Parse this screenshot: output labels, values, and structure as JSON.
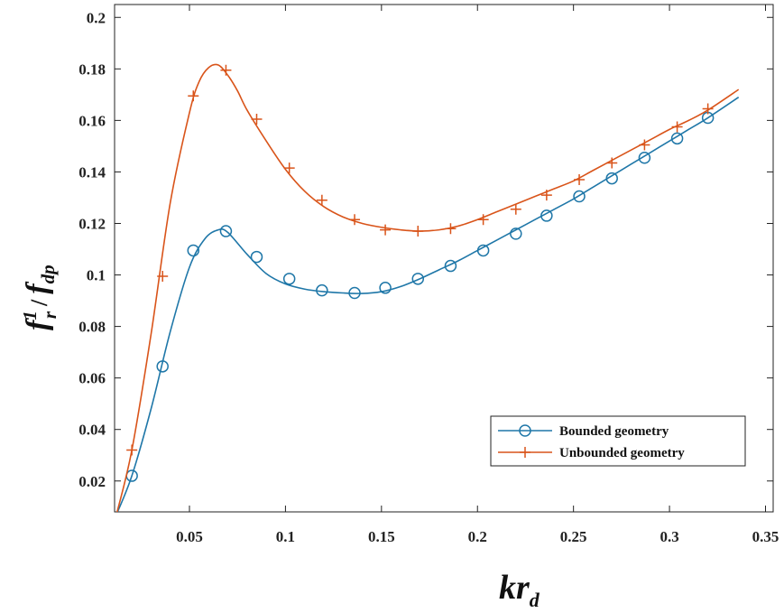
{
  "chart_data": {
    "type": "line",
    "title": "",
    "xlabel_main": "kr",
    "xlabel_sub": "d",
    "ylabel_f1": "f",
    "ylabel_f1_sub": "r",
    "ylabel_f1_sup": "1",
    "ylabel_slash": "/",
    "ylabel_f2": "f",
    "ylabel_f2_sub": "dp",
    "xlim": [
      0.011,
      0.354
    ],
    "ylim": [
      0.008,
      0.205
    ],
    "xticks": [
      0.05,
      0.1,
      0.15,
      0.2,
      0.25,
      0.3,
      0.35
    ],
    "xtick_labels": [
      "0.05",
      "0.1",
      "0.15",
      "0.2",
      "0.25",
      "0.3",
      "0.35"
    ],
    "yticks": [
      0.02,
      0.04,
      0.06,
      0.08,
      0.1,
      0.12,
      0.14,
      0.16,
      0.18,
      0.2
    ],
    "ytick_labels": [
      "0.02",
      "0.04",
      "0.06",
      "0.08",
      "0.1",
      "0.12",
      "0.14",
      "0.16",
      "0.18",
      "0.2"
    ],
    "grid": false,
    "legend_position": "lower-right",
    "series": [
      {
        "name": "Bounded geometry",
        "color": "#1f77a8",
        "marker": "circle",
        "curve_x": [
          0.012,
          0.02,
          0.03,
          0.04,
          0.05,
          0.058,
          0.065,
          0.07,
          0.08,
          0.09,
          0.1,
          0.11,
          0.12,
          0.13,
          0.14,
          0.15,
          0.16,
          0.17,
          0.18,
          0.19,
          0.2,
          0.21,
          0.22,
          0.23,
          0.24,
          0.25,
          0.26,
          0.27,
          0.28,
          0.29,
          0.3,
          0.31,
          0.32,
          0.336
        ],
        "curve_y": [
          0.007,
          0.022,
          0.048,
          0.078,
          0.103,
          0.114,
          0.1175,
          0.1165,
          0.108,
          0.1005,
          0.0965,
          0.0945,
          0.0935,
          0.093,
          0.0928,
          0.0935,
          0.0955,
          0.0985,
          0.102,
          0.1055,
          0.1095,
          0.1135,
          0.1175,
          0.1215,
          0.1255,
          0.1295,
          0.134,
          0.1385,
          0.143,
          0.1475,
          0.152,
          0.1565,
          0.161,
          0.169
        ],
        "marker_x": [
          0.02,
          0.036,
          0.052,
          0.069,
          0.085,
          0.102,
          0.119,
          0.136,
          0.152,
          0.169,
          0.186,
          0.203,
          0.22,
          0.236,
          0.253,
          0.27,
          0.287,
          0.304,
          0.32
        ],
        "marker_y": [
          0.022,
          0.0645,
          0.1095,
          0.117,
          0.107,
          0.0985,
          0.094,
          0.093,
          0.095,
          0.0985,
          0.1035,
          0.1095,
          0.116,
          0.123,
          0.1305,
          0.1375,
          0.1455,
          0.153,
          0.161
        ]
      },
      {
        "name": "Unbounded geometry",
        "color": "#d9541a",
        "marker": "plus",
        "curve_x": [
          0.012,
          0.02,
          0.03,
          0.04,
          0.05,
          0.055,
          0.06,
          0.065,
          0.07,
          0.075,
          0.08,
          0.09,
          0.1,
          0.11,
          0.12,
          0.13,
          0.14,
          0.15,
          0.16,
          0.17,
          0.18,
          0.19,
          0.2,
          0.21,
          0.22,
          0.23,
          0.24,
          0.25,
          0.26,
          0.27,
          0.28,
          0.29,
          0.3,
          0.31,
          0.32,
          0.336
        ],
        "curve_y": [
          0.007,
          0.032,
          0.077,
          0.128,
          0.163,
          0.175,
          0.1805,
          0.1815,
          0.1775,
          0.1715,
          0.164,
          0.152,
          0.141,
          0.1325,
          0.1265,
          0.1225,
          0.12,
          0.1185,
          0.1175,
          0.117,
          0.1175,
          0.119,
          0.1215,
          0.1245,
          0.1275,
          0.1305,
          0.1335,
          0.1365,
          0.1405,
          0.1445,
          0.1485,
          0.1525,
          0.1565,
          0.16,
          0.164,
          0.172
        ],
        "marker_x": [
          0.02,
          0.036,
          0.052,
          0.069,
          0.085,
          0.102,
          0.119,
          0.136,
          0.152,
          0.169,
          0.186,
          0.203,
          0.22,
          0.236,
          0.253,
          0.27,
          0.287,
          0.304,
          0.32
        ],
        "marker_y": [
          0.032,
          0.0995,
          0.1695,
          0.1795,
          0.1605,
          0.1415,
          0.129,
          0.1215,
          0.1175,
          0.117,
          0.118,
          0.1215,
          0.1255,
          0.131,
          0.137,
          0.1435,
          0.1505,
          0.1575,
          0.1645
        ]
      }
    ]
  }
}
